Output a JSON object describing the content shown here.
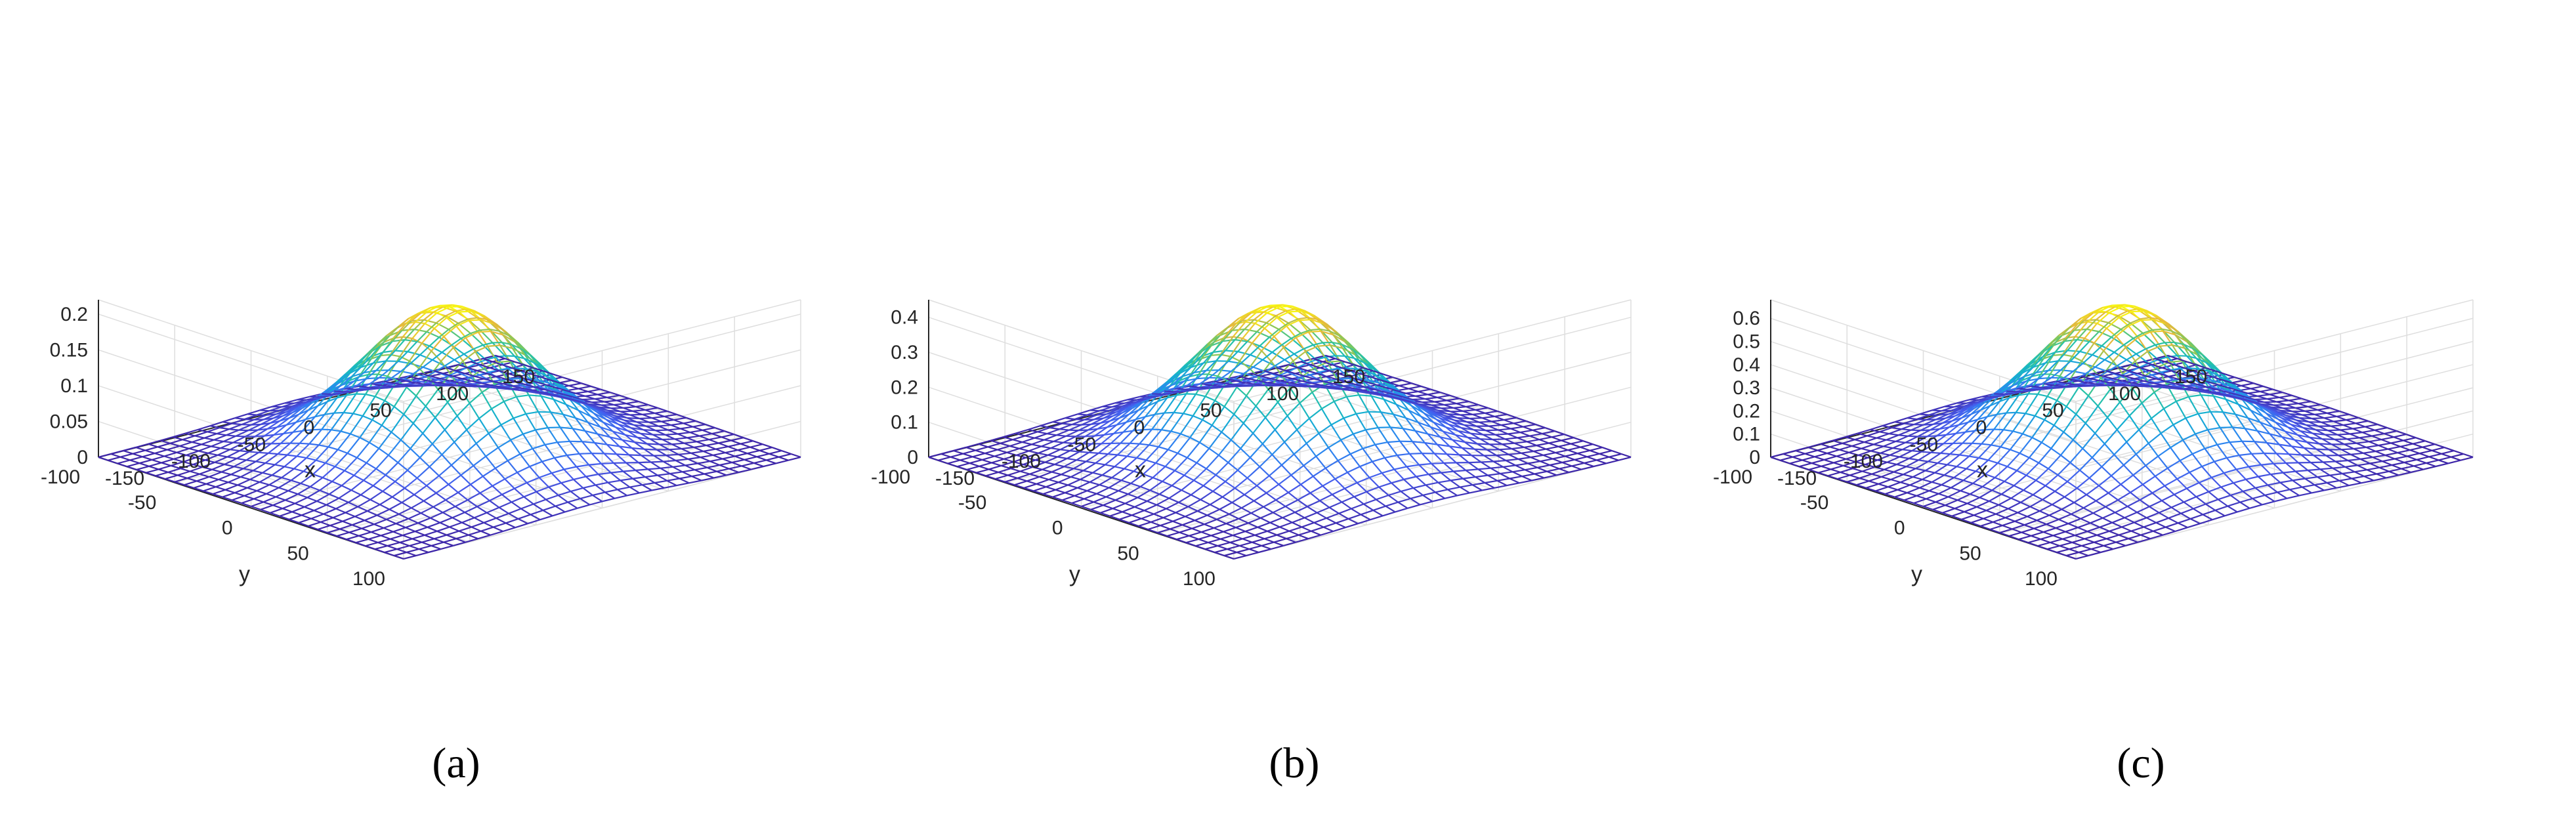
{
  "chart_data": [
    {
      "type": "surface",
      "caption": "(a)",
      "xlabel": "x",
      "ylabel": "y",
      "xlim": [
        -150,
        150
      ],
      "ylim": [
        -100,
        100
      ],
      "zlim": [
        0,
        0.22
      ],
      "x_ticks": [
        -150,
        -100,
        -50,
        0,
        50,
        100,
        150
      ],
      "y_ticks": [
        -100,
        -50,
        0,
        50,
        100
      ],
      "z_ticks": [
        0,
        0.05,
        0.1,
        0.15,
        0.2
      ],
      "z_tick_labels": [
        "0",
        "0.05",
        "0.1",
        "0.15",
        "0.2"
      ],
      "peak": 0.21,
      "grid": true,
      "colormap": "parula"
    },
    {
      "type": "surface",
      "caption": "(b)",
      "xlabel": "x",
      "ylabel": "y",
      "xlim": [
        -150,
        150
      ],
      "ylim": [
        -100,
        100
      ],
      "zlim": [
        0,
        0.45
      ],
      "x_ticks": [
        -150,
        -100,
        -50,
        0,
        50,
        100,
        150
      ],
      "y_ticks": [
        -100,
        -50,
        0,
        50,
        100
      ],
      "z_ticks": [
        0,
        0.1,
        0.2,
        0.3,
        0.4
      ],
      "z_tick_labels": [
        "0",
        "0.1",
        "0.2",
        "0.3",
        "0.4"
      ],
      "peak": 0.43,
      "grid": true,
      "colormap": "parula"
    },
    {
      "type": "surface",
      "caption": "(c)",
      "xlabel": "x",
      "ylabel": "y",
      "xlim": [
        -150,
        150
      ],
      "ylim": [
        -100,
        100
      ],
      "zlim": [
        0,
        0.68
      ],
      "x_ticks": [
        -150,
        -100,
        -50,
        0,
        50,
        100,
        150
      ],
      "y_ticks": [
        -100,
        -50,
        0,
        50,
        100
      ],
      "z_ticks": [
        0,
        0.1,
        0.2,
        0.3,
        0.4,
        0.5,
        0.6
      ],
      "z_tick_labels": [
        "0",
        "0.1",
        "0.2",
        "0.3",
        "0.4",
        "0.5",
        "0.6"
      ],
      "peak": 0.65,
      "grid": true,
      "colormap": "parula"
    }
  ]
}
